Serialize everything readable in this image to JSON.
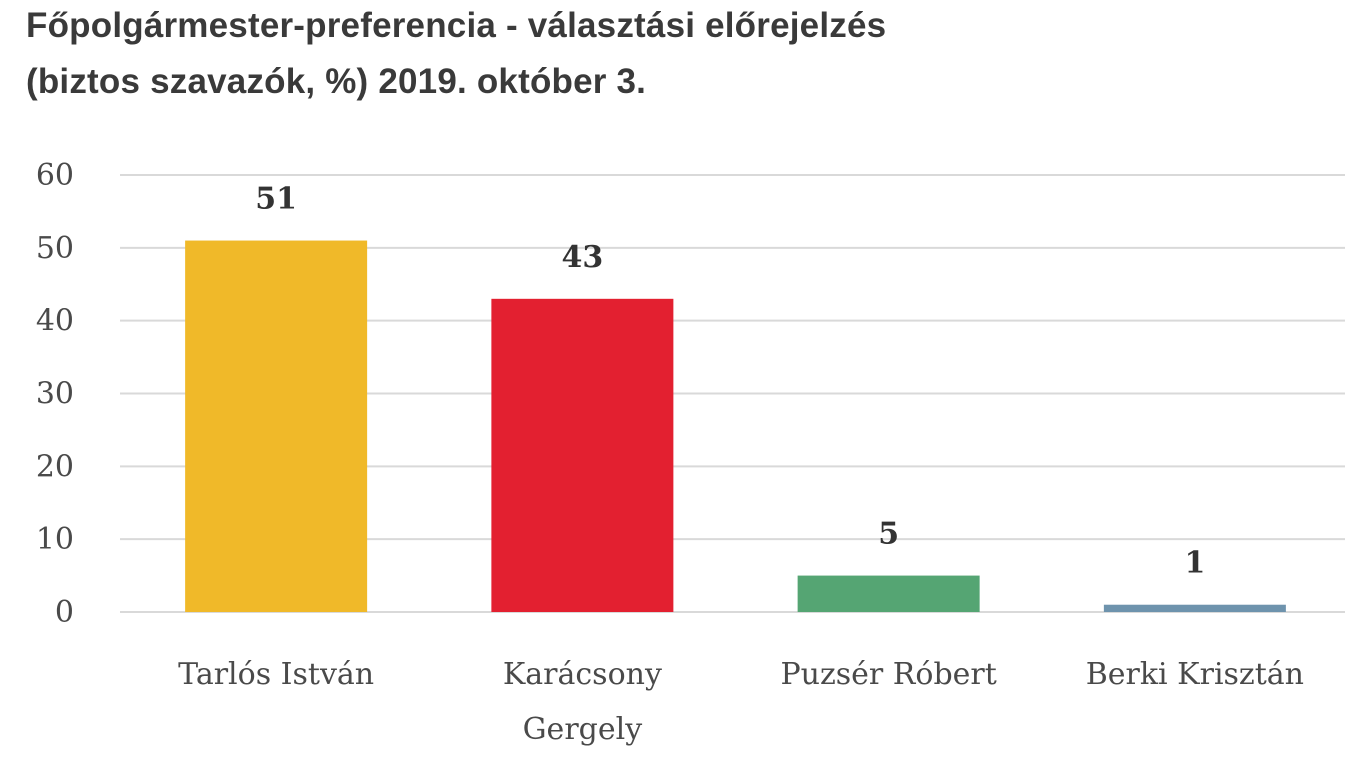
{
  "chart_data": {
    "type": "bar",
    "title_lines": [
      "Főpolgármester-preferencia - választási előrejelzés",
      "(biztos szavazók, %) 2019. október 3."
    ],
    "categories": [
      [
        "Tarlós István"
      ],
      [
        "Karácsony",
        "Gergely"
      ],
      [
        "Puzsér Róbert"
      ],
      [
        "Berki Krisztán"
      ]
    ],
    "values": [
      51,
      43,
      5,
      1
    ],
    "colors": [
      "#f0b929",
      "#e32030",
      "#55a573",
      "#6e93ad"
    ],
    "ylim": [
      0,
      60
    ],
    "yticks": [
      0,
      10,
      20,
      30,
      40,
      50,
      60
    ],
    "grid": true,
    "legend": "none",
    "data_labels": true
  }
}
